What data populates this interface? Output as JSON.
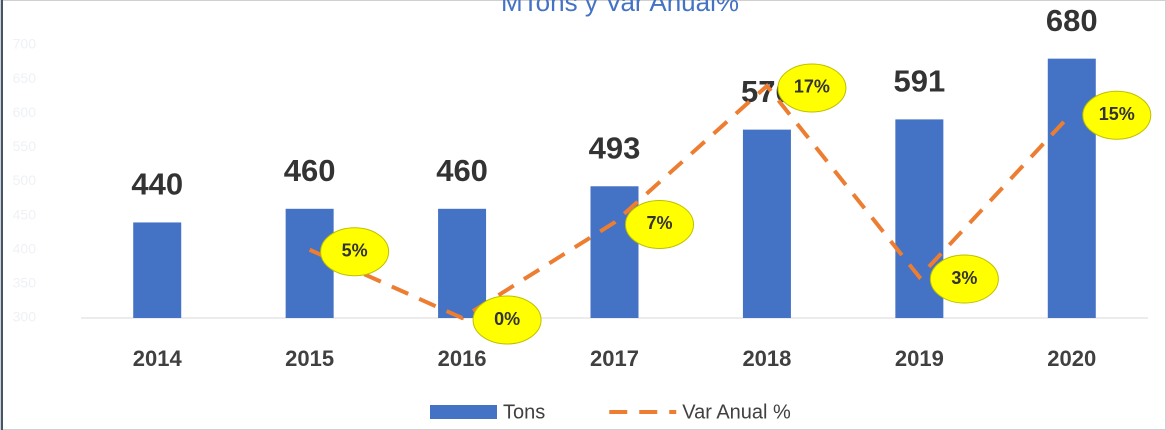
{
  "chart_data": {
    "type": "bar",
    "title": "MTons y Var Anual%",
    "categories": [
      "2014",
      "2015",
      "2016",
      "2017",
      "2018",
      "2019",
      "2020"
    ],
    "series": [
      {
        "name": "Tons",
        "type": "bar",
        "color": "#4472c4",
        "values": [
          440,
          460,
          460,
          493,
          576,
          591,
          680
        ]
      },
      {
        "name": "Var Anual %",
        "type": "line",
        "color": "#ed7d31",
        "axis": "y2",
        "dashed": true,
        "values": [
          null,
          5,
          0,
          7,
          17,
          3,
          15
        ],
        "value_labels": [
          null,
          "5%",
          "0%",
          "7%",
          "17%",
          "3%",
          "15%"
        ]
      }
    ],
    "ylim": [
      300,
      700
    ],
    "yticks": [
      300,
      350,
      400,
      450,
      500,
      550,
      600,
      650,
      700
    ],
    "y2lim": [
      0,
      20
    ],
    "legend": "bottom"
  }
}
